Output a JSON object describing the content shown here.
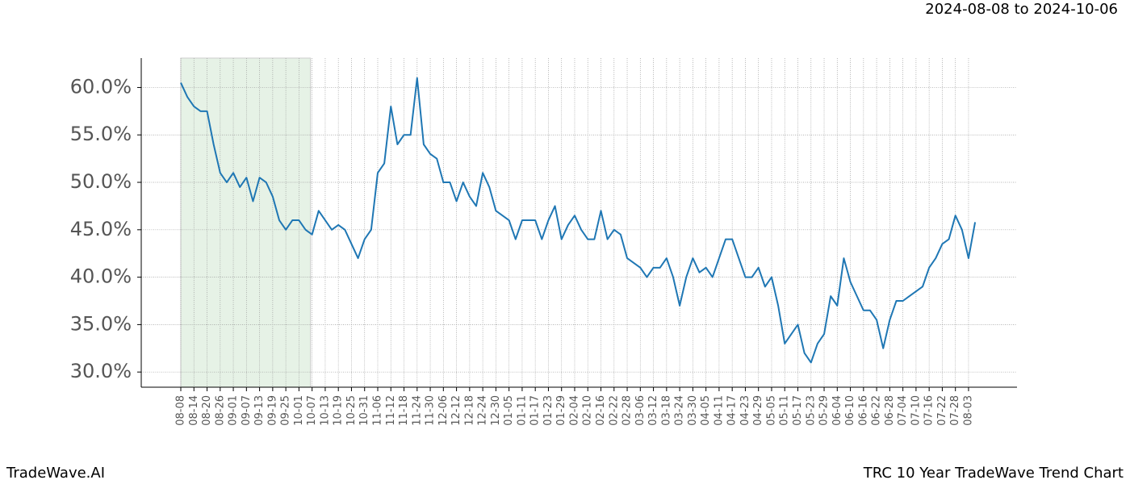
{
  "chart_data": {
    "type": "line",
    "title": "2024-08-08 to 2024-10-06",
    "brand": "TradeWave.AI",
    "subtitle": "TRC 10 Year TradeWave Trend Chart",
    "categories": [
      "08-08",
      null,
      "08-14",
      null,
      "08-20",
      null,
      "08-26",
      null,
      "09-01",
      null,
      "09-07",
      null,
      "09-13",
      null,
      "09-19",
      null,
      "09-25",
      null,
      "10-01",
      null,
      "10-07",
      null,
      "10-13",
      null,
      "10-19",
      null,
      "10-25",
      null,
      "10-31",
      null,
      "11-06",
      null,
      "11-12",
      null,
      "11-18",
      null,
      "11-24",
      null,
      "11-30",
      null,
      "12-06",
      null,
      "12-12",
      null,
      "12-18",
      null,
      "12-24",
      null,
      "12-30",
      null,
      "01-05",
      null,
      "01-11",
      null,
      "01-17",
      null,
      "01-23",
      null,
      "01-29",
      null,
      "02-04",
      null,
      "02-10",
      null,
      "02-16",
      null,
      "02-22",
      null,
      "02-28",
      null,
      "03-06",
      null,
      "03-12",
      null,
      "03-18",
      null,
      "03-24",
      null,
      "03-30",
      null,
      "04-05",
      null,
      "04-11",
      null,
      "04-17",
      null,
      "04-23",
      null,
      "04-29",
      null,
      "05-05",
      null,
      "05-11",
      null,
      "05-17",
      null,
      "05-23",
      null,
      "05-29",
      null,
      "06-04",
      null,
      "06-10",
      null,
      "06-16",
      null,
      "06-22",
      null,
      "06-28",
      null,
      "07-04",
      null,
      "07-10",
      null,
      "07-16",
      null,
      "07-22",
      null,
      "07-28",
      null,
      "08-03",
      null
    ],
    "values": [
      60.5,
      59,
      58,
      57.5,
      57.5,
      54,
      51,
      50,
      51,
      49.5,
      50.5,
      48,
      50.5,
      50,
      48.5,
      46,
      45,
      46,
      46,
      45,
      44.5,
      47,
      46,
      45,
      45.5,
      45,
      43.5,
      42,
      44,
      45,
      51,
      52,
      58,
      54,
      55,
      55,
      61,
      54,
      53,
      52.5,
      50,
      50,
      48,
      50,
      48.5,
      47.5,
      51,
      49.5,
      47,
      46.5,
      46,
      44,
      46,
      46,
      46,
      44,
      46,
      47.5,
      44,
      45.5,
      46.5,
      45,
      44,
      44,
      47,
      44,
      45,
      44.5,
      42,
      41.5,
      41,
      40,
      41,
      41,
      42,
      40,
      37,
      40,
      42,
      40.5,
      41,
      40,
      42,
      44,
      44,
      42,
      40,
      40,
      41,
      39,
      40,
      37,
      33,
      34,
      35,
      32,
      31,
      33,
      34,
      38,
      37,
      42,
      39.5,
      38,
      36.5,
      36.5,
      35.5,
      32.5,
      35.5,
      37.5,
      37.5,
      38,
      38.5,
      39,
      41,
      42,
      43.5,
      44,
      46.5,
      45,
      42,
      45.8
    ],
    "color": "#1f77b4",
    "shade": {
      "from": "08-08",
      "to": "10-07",
      "color": "#e6f2e6"
    },
    "ylim": [
      28.4,
      63.1
    ],
    "yticks": [
      {
        "value": 30,
        "label": "30.0%"
      },
      {
        "value": 35,
        "label": "35.0%"
      },
      {
        "value": 40,
        "label": "40.0%"
      },
      {
        "value": 45,
        "label": "45.0%"
      },
      {
        "value": 50,
        "label": "50.0%"
      },
      {
        "value": 55,
        "label": "55.0%"
      },
      {
        "value": 60,
        "label": "60.0%"
      }
    ],
    "grid": true
  }
}
